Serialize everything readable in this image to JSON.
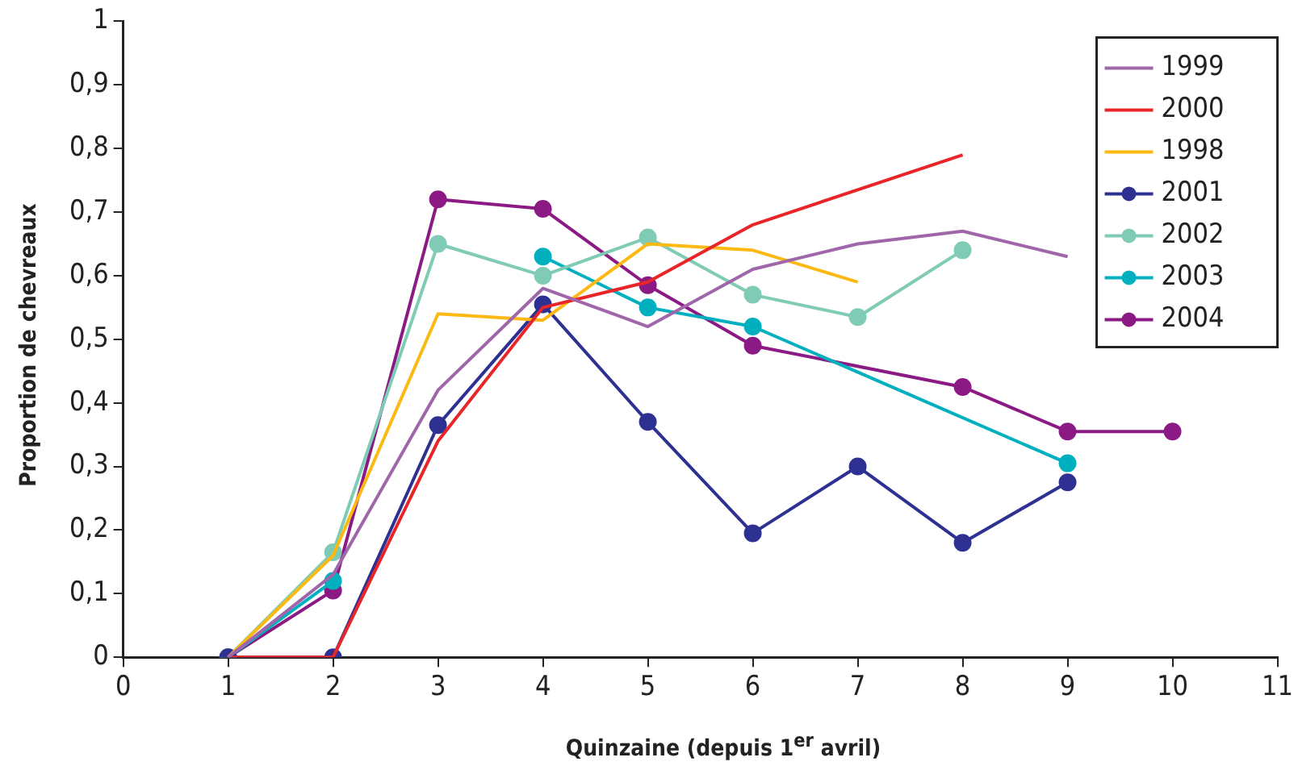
{
  "chart_data": {
    "type": "line",
    "xlabel": "Quinzaine (depuis 1$^{er}$ avril)",
    "ylabel": "Proportion de chevreaux",
    "x": [
      1,
      2,
      3,
      4,
      5,
      6,
      7,
      8,
      9
    ],
    "xlim": [
      0,
      11
    ],
    "xticks": [
      0,
      1,
      2,
      3,
      4,
      5,
      6,
      7,
      8,
      9,
      10,
      11
    ],
    "ylim": [
      0,
      1
    ],
    "yticks": [
      {
        "value": 0,
        "label": "0"
      },
      {
        "value": 0.1,
        "label": "0,1"
      },
      {
        "value": 0.2,
        "label": "0,2"
      },
      {
        "value": 0.3,
        "label": "0,3"
      },
      {
        "value": 0.4,
        "label": "0,4"
      },
      {
        "value": 0.5,
        "label": "0,5"
      },
      {
        "value": 0.6,
        "label": "0,6"
      },
      {
        "value": 0.7,
        "label": "0,7"
      },
      {
        "value": 0.8,
        "label": "0,8"
      },
      {
        "value": 0.9,
        "label": "0,9"
      },
      {
        "value": 1,
        "label": "1"
      }
    ],
    "grid": false,
    "legend": "top right",
    "series": [
      {
        "name": "1999",
        "color": "#a066aa",
        "marker": "none",
        "values": [
          0,
          0.13,
          0.42,
          0.58,
          0.52,
          0.61,
          0.65,
          0.67,
          0.63
        ]
      },
      {
        "name": "2000",
        "color": "#e8262a",
        "marker": "none",
        "x": [
          1,
          2,
          3,
          4,
          5,
          6,
          8
        ],
        "values": [
          0,
          0,
          0.34,
          0.55,
          0.59,
          0.68,
          0.79
        ]
      },
      {
        "name": "1998",
        "color": "#fdb913",
        "marker": "none",
        "x": [
          1,
          2,
          3,
          4,
          5,
          6,
          7
        ],
        "values": [
          0,
          0.16,
          0.54,
          0.53,
          0.65,
          0.64,
          0.59
        ]
      },
      {
        "name": "2001",
        "color": "#2e3192",
        "marker": "circle",
        "values": [
          0,
          0,
          0.365,
          0.555,
          0.37,
          0.195,
          0.3,
          0.18,
          0.275
        ]
      },
      {
        "name": "2002",
        "color": "#7fcbb5",
        "marker": "circle",
        "x": [
          1,
          2,
          3,
          4,
          5,
          6,
          7,
          8
        ],
        "values": [
          0,
          0.165,
          0.65,
          0.6,
          0.66,
          0.57,
          0.535,
          0.64
        ]
      },
      {
        "name": "2003",
        "color": "#00b0bf",
        "marker": "circle",
        "x": [
          1,
          2,
          3,
          4,
          5,
          6,
          9
        ],
        "values": [
          0,
          0.12,
          null,
          0.63,
          0.55,
          0.52,
          0.305
        ]
      },
      {
        "name": "2004",
        "color": "#8b1a84",
        "marker": "circle",
        "x": [
          1,
          2,
          3,
          4,
          5,
          6,
          8,
          9,
          10
        ],
        "values": [
          0,
          0.105,
          0.72,
          0.705,
          0.585,
          0.49,
          0.425,
          0.355,
          0.355
        ]
      }
    ]
  }
}
